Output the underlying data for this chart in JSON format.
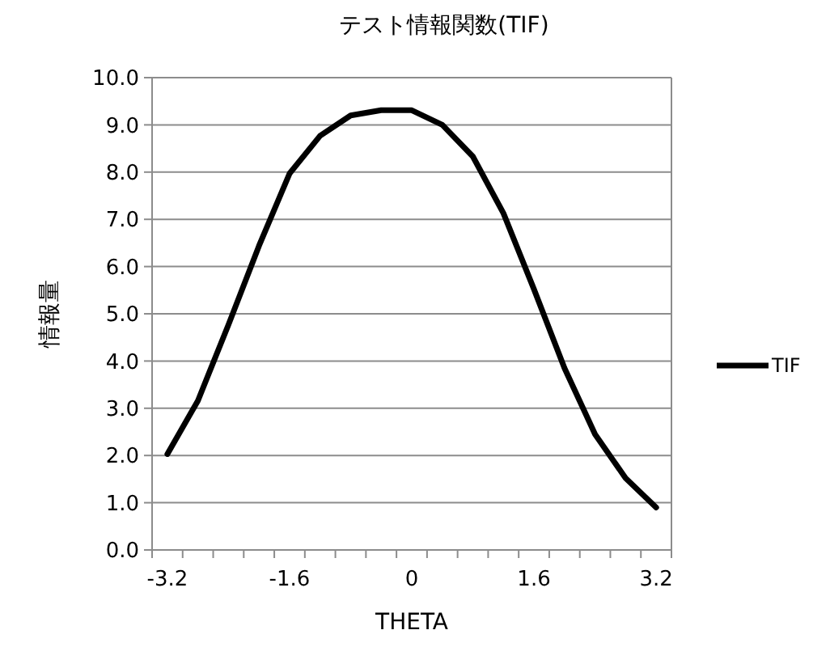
{
  "chart_data": {
    "type": "line",
    "title": "テスト情報関数(TIF)",
    "xlabel": "THETA",
    "ylabel": "情報量",
    "categories": [
      "-3.2",
      null,
      null,
      null,
      "-1.6",
      null,
      null,
      null,
      "0",
      null,
      null,
      null,
      "1.6",
      null,
      null,
      null,
      "3.2"
    ],
    "series": [
      {
        "name": "TIF",
        "color": "#000000",
        "values": [
          2.03,
          3.16,
          4.77,
          6.44,
          7.97,
          8.77,
          9.2,
          9.31,
          9.31,
          9.0,
          8.33,
          7.13,
          5.52,
          3.85,
          2.45,
          1.52,
          0.9
        ]
      }
    ],
    "ylim": [
      0,
      10
    ],
    "yticks": [
      {
        "value": 0,
        "label": "0.0"
      },
      {
        "value": 1,
        "label": "1.0"
      },
      {
        "value": 2,
        "label": "2.0"
      },
      {
        "value": 3,
        "label": "3.0"
      },
      {
        "value": 4,
        "label": "4.0"
      },
      {
        "value": 5,
        "label": "5.0"
      },
      {
        "value": 6,
        "label": "6.0"
      },
      {
        "value": 7,
        "label": "7.0"
      },
      {
        "value": 8,
        "label": "8.0"
      },
      {
        "value": 9,
        "label": "9.0"
      },
      {
        "value": 10,
        "label": "10.0"
      }
    ],
    "grid": "y",
    "legend": "right",
    "marker": "none",
    "line_style": "solid"
  }
}
